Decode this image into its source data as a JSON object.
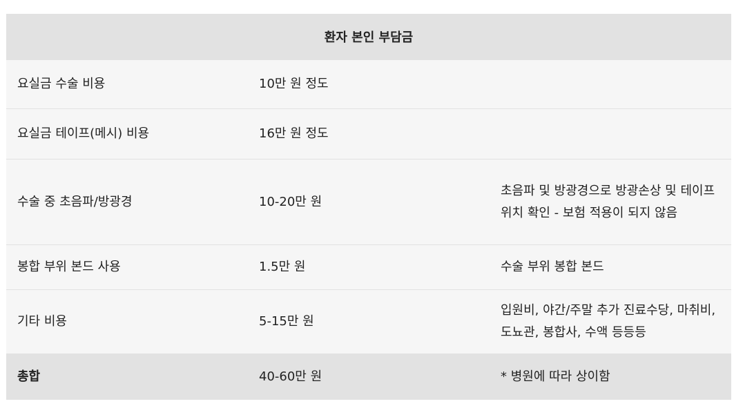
{
  "table": {
    "header": "환자 본인 부담금",
    "rows": [
      {
        "item": "요실금 수술 비용",
        "cost": "10만 원 정도",
        "note": ""
      },
      {
        "item": "요실금 테이프(메시) 비용",
        "cost": "16만 원 정도",
        "note": ""
      },
      {
        "item": "수술 중 초음파/방광경",
        "cost": "10-20만 원",
        "note": "초음파 및 방광경으로 방광손상 및 테이프 위치 확인 - 보험 적용이 되지 않음"
      },
      {
        "item": "봉합 부위 본드 사용",
        "cost": "1.5만 원",
        "note": "수술 부위 봉합 본드"
      },
      {
        "item": "기타 비용",
        "cost": "5-15만 원",
        "note": "입원비, 야간/주말 추가 진료수당, 마취비, 도뇨관, 봉합사, 수액 등등등"
      }
    ],
    "total": {
      "item": "총합",
      "cost": "40-60만 원",
      "note": "* 병원에 따라 상이함"
    }
  }
}
